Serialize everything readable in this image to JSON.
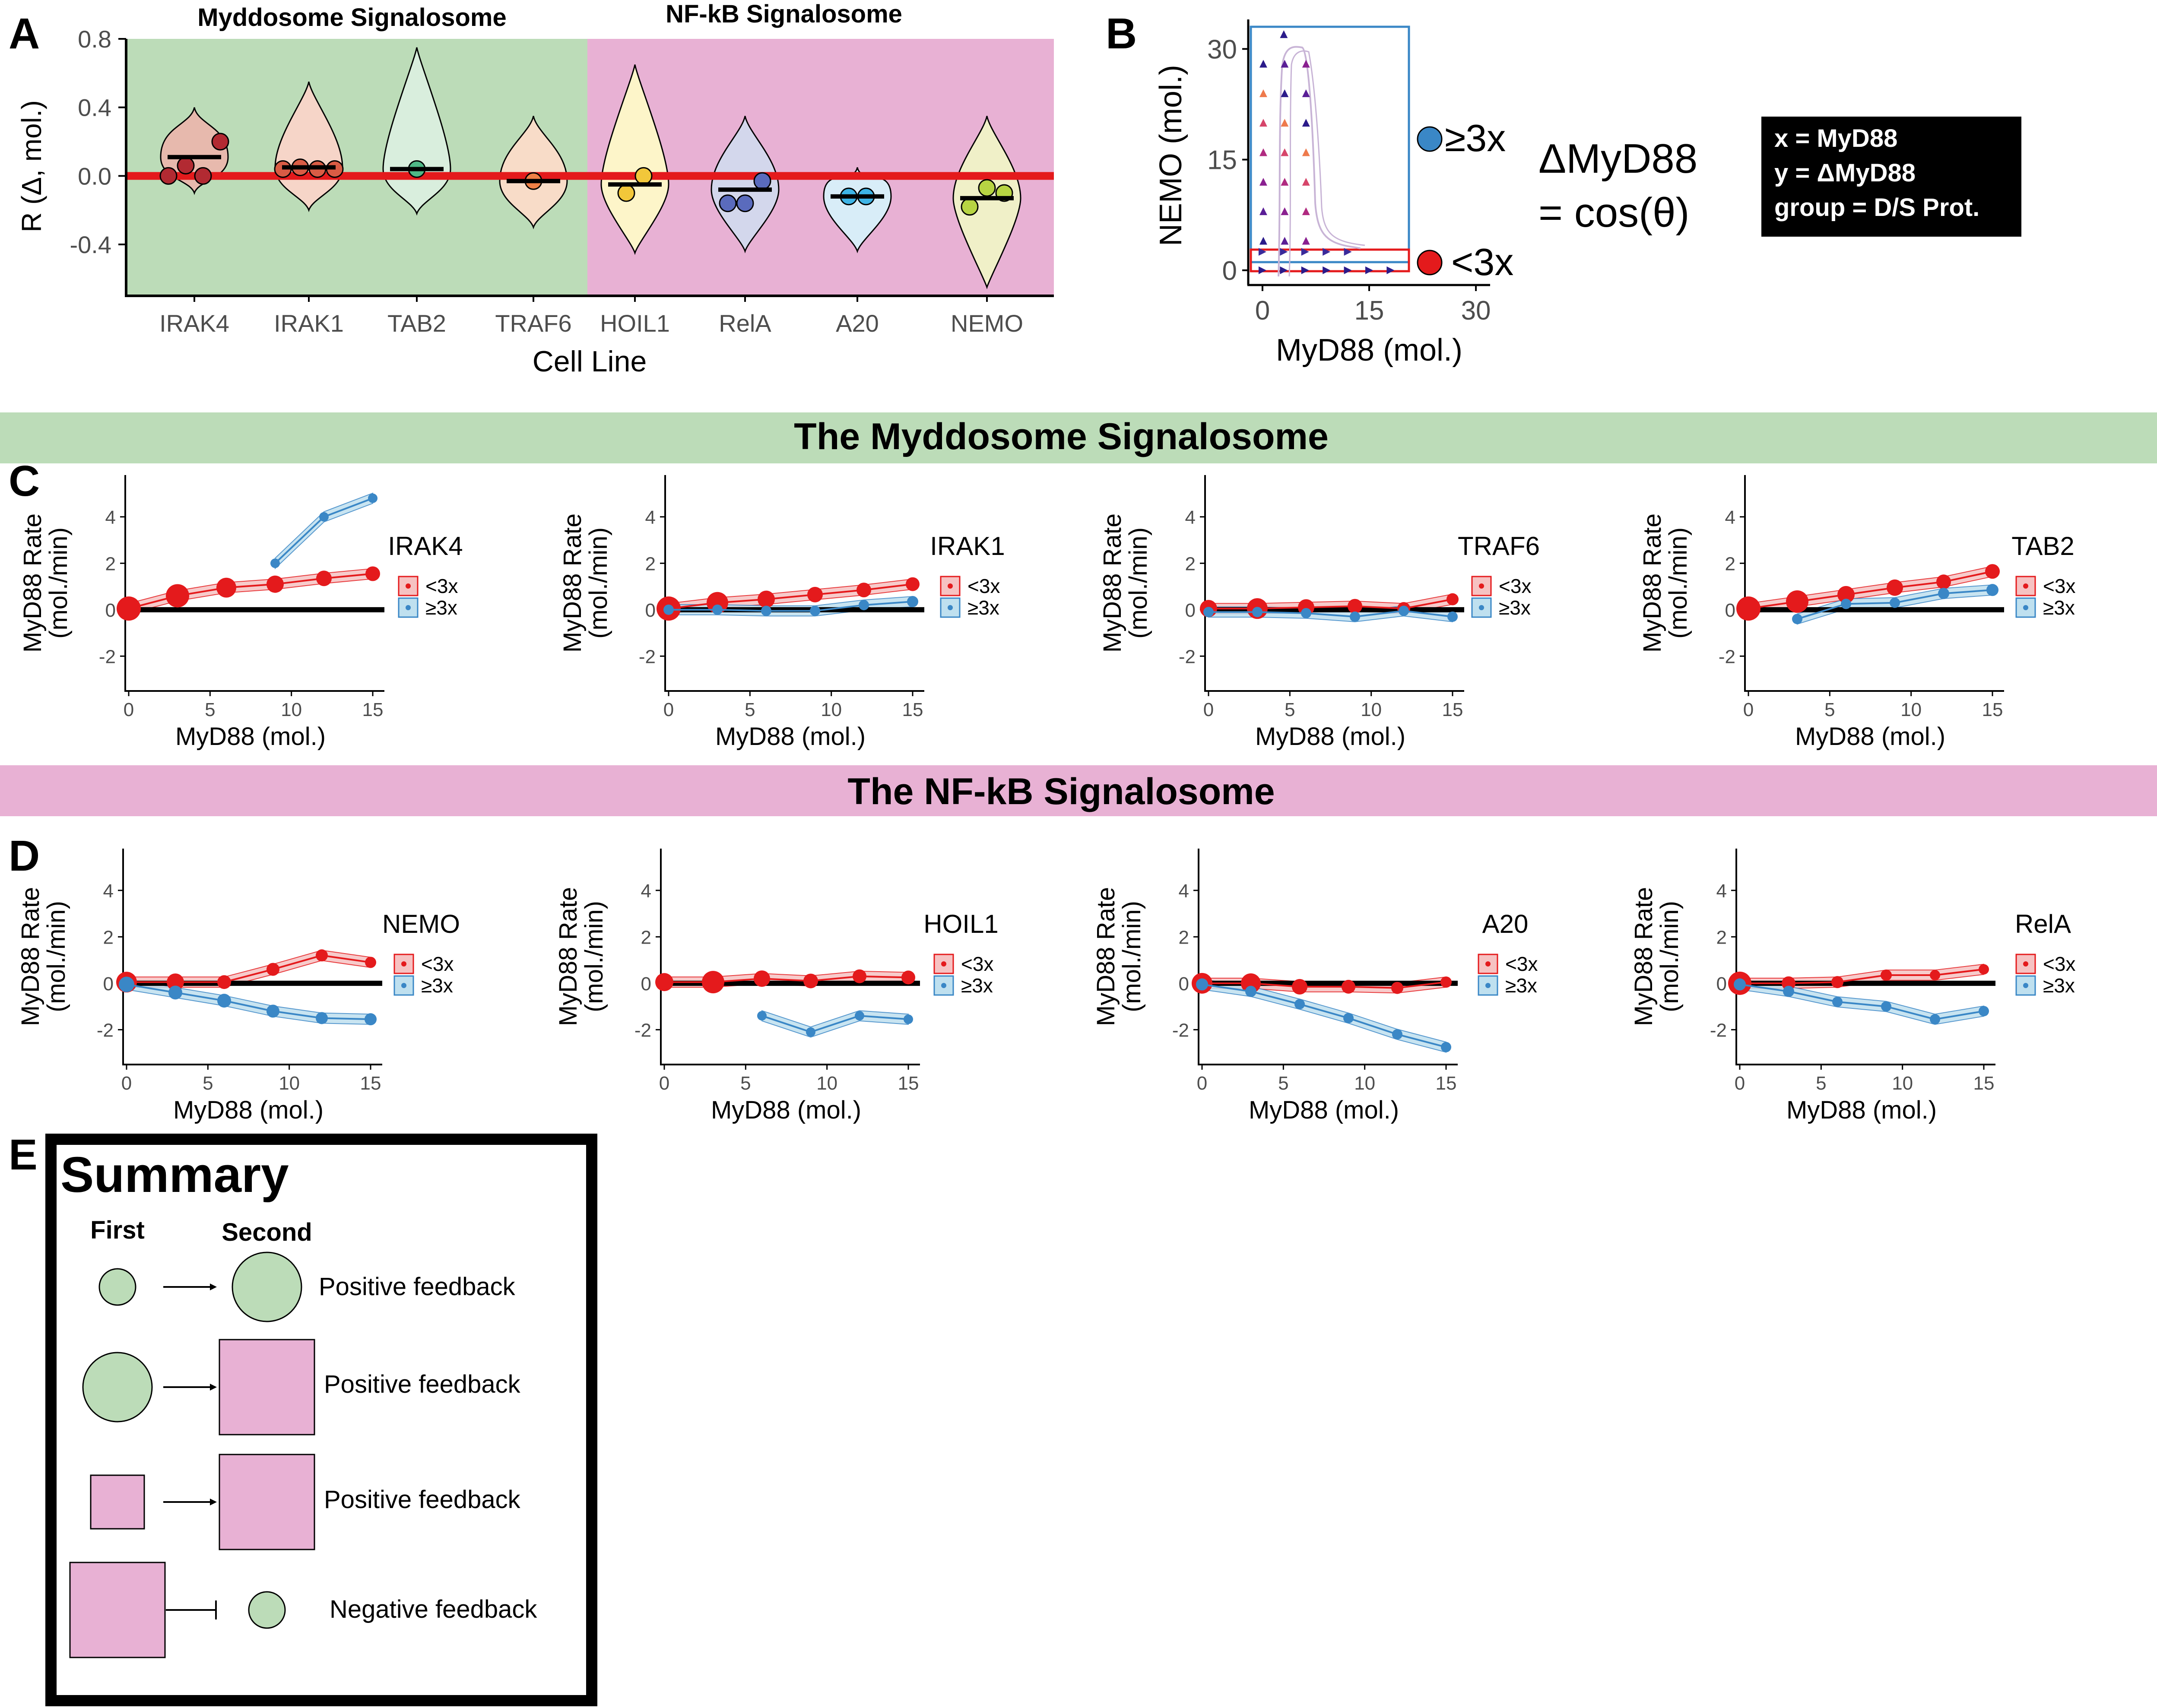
{
  "colors": {
    "red": "#e41a1c",
    "blue": "#3a87c6",
    "green_bg": "#bcdcb8",
    "pink_bg": "#e8b1d4",
    "black": "#000000",
    "axis_text": "#4d4d4d"
  },
  "panel_labels": {
    "A": "A",
    "B": "B",
    "C": "C",
    "D": "D",
    "E": "E"
  },
  "panel_a": {
    "group_titles": {
      "myddosome": "Myddosome Signalosome",
      "nfkb": "NF-kB Signalosome"
    },
    "ylabel": "R (Δ, mol.)",
    "xlabel": "Cell Line"
  },
  "panel_b": {
    "xlabel": "MyD88 (mol.)",
    "ylabel": "NEMO (mol.)",
    "legend_high": "≥3x",
    "legend_low": "<3x",
    "formula_line1": "ΔMyD88",
    "formula_line2": "= cos(θ)",
    "info_box": [
      "x = MyD88",
      "y = ΔMyD88",
      "group = D/S Prot."
    ]
  },
  "banners": {
    "myddosome": "The Myddosome Signalosome",
    "nfkb": "The NF-kB Signalosome"
  },
  "small_plot_labels": {
    "ylabel_line1": "MyD88 Rate",
    "ylabel_line2": "(mol./min)",
    "xlabel": "MyD88 (mol.)",
    "legend_low": "<3x",
    "legend_high": "≥3x"
  },
  "summary": {
    "title": "Summary",
    "col_first": "First",
    "col_second": "Second",
    "rows": [
      {
        "first": "circle",
        "second": "circle",
        "link": "arrow",
        "label": "Positive feedback"
      },
      {
        "first": "circle",
        "second": "square",
        "link": "arrow",
        "label": "Positive feedback"
      },
      {
        "first": "square",
        "second": "square",
        "link": "arrow",
        "label": "Positive feedback"
      },
      {
        "first": "square",
        "second": "circle",
        "link": "inhibit",
        "label": "Negative feedback"
      }
    ]
  },
  "chart_data": [
    {
      "id": "A",
      "type": "violin",
      "xlabel": "Cell Line",
      "ylabel": "R (Δ, mol.)",
      "ylim": [
        -0.7,
        0.8
      ],
      "yticks": [
        0.8,
        0.4,
        0.0,
        -0.4
      ],
      "ytick_labels": [
        "0.8",
        "0.4",
        "0.0",
        "-0.4"
      ],
      "reference_line": 0.0,
      "categories": [
        "IRAK4",
        "IRAK1",
        "TAB2",
        "TRAF6",
        "HOIL1",
        "RelA",
        "A20",
        "NEMO"
      ],
      "groups": [
        {
          "name": "Myddosome Signalosome",
          "categories": [
            "IRAK4",
            "IRAK1",
            "TAB2",
            "TRAF6"
          ]
        },
        {
          "name": "NF-kB Signalosome",
          "categories": [
            "HOIL1",
            "RelA",
            "A20",
            "NEMO"
          ]
        }
      ],
      "fill_colors": [
        "#e7b9ad",
        "#f6d5c8",
        "#d9eedd",
        "#f8dcc8",
        "#fdf5c9",
        "#d3d7ec",
        "#d8edf8",
        "#f0f0c8"
      ],
      "point_colors": [
        "#b22a32",
        "#d95c45",
        "#4fb886",
        "#f08046",
        "#f2c73a",
        "#5a6bbd",
        "#3eb4e6",
        "#b7d443"
      ],
      "violins": [
        {
          "category": "IRAK4",
          "min": -0.1,
          "max": 0.4,
          "median": 0.11,
          "points": [
            0.0,
            0.06,
            0.0,
            0.2
          ]
        },
        {
          "category": "IRAK1",
          "min": -0.2,
          "max": 0.55,
          "median": 0.05,
          "points": [
            0.04,
            0.05,
            0.04,
            0.04
          ]
        },
        {
          "category": "TAB2",
          "min": -0.22,
          "max": 0.75,
          "median": 0.04,
          "points": [
            0.04
          ]
        },
        {
          "category": "TRAF6",
          "min": -0.3,
          "max": 0.35,
          "median": -0.03,
          "points": [
            -0.03
          ]
        },
        {
          "category": "HOIL1",
          "min": -0.45,
          "max": 0.65,
          "median": -0.05,
          "points": [
            -0.1,
            0.0
          ]
        },
        {
          "category": "RelA",
          "min": -0.44,
          "max": 0.35,
          "median": -0.08,
          "points": [
            -0.16,
            -0.16,
            -0.03
          ]
        },
        {
          "category": "A20",
          "min": -0.44,
          "max": 0.05,
          "median": -0.12,
          "points": [
            -0.12,
            -0.12
          ]
        },
        {
          "category": "NEMO",
          "min": -0.65,
          "max": 0.35,
          "median": -0.13,
          "points": [
            -0.18,
            -0.07,
            -0.1
          ]
        }
      ]
    },
    {
      "id": "B",
      "type": "vector-field",
      "xlabel": "MyD88 (mol.)",
      "ylabel": "NEMO (mol.)",
      "xlim": [
        -2,
        32
      ],
      "ylim": [
        -2,
        34
      ],
      "xticks": [
        0,
        15,
        30
      ],
      "yticks": [
        0,
        15,
        30
      ],
      "regions": [
        {
          "name": "≥3x",
          "color": "#3a87c6"
        },
        {
          "name": "<3x",
          "color": "#e41a1c"
        }
      ],
      "arrow_columns_x": [
        0,
        3,
        6
      ],
      "arrow_rows_y": [
        4,
        8,
        12,
        16,
        20,
        24,
        28
      ],
      "bottom_row_y": 0,
      "bottom_row_x": [
        0,
        3,
        6,
        9,
        12,
        15,
        18
      ]
    },
    {
      "id": "C-IRAK4",
      "type": "line",
      "title": "IRAK4",
      "xlabel": "MyD88 (mol.)",
      "ylabel": "MyD88 Rate (mol./min)",
      "xlim": [
        -1,
        16
      ],
      "ylim": [
        -3.5,
        5.8
      ],
      "xticks": [
        0,
        5,
        10,
        15
      ],
      "yticks": [
        -2,
        0,
        2,
        4
      ],
      "series": [
        {
          "name": "<3x",
          "x": [
            0,
            3,
            6,
            9,
            12,
            15
          ],
          "y": [
            0.05,
            0.6,
            0.95,
            1.1,
            1.35,
            1.55
          ],
          "sizes": [
            1.0,
            0.95,
            0.75,
            0.6,
            0.5,
            0.45
          ]
        },
        {
          "name": "≥3x",
          "x": [
            9,
            12,
            15
          ],
          "y": [
            2.0,
            4.0,
            4.8
          ],
          "sizes": [
            0.15,
            0.15,
            0.15
          ]
        }
      ]
    },
    {
      "id": "C-IRAK1",
      "type": "line",
      "title": "IRAK1",
      "xlabel": "MyD88 (mol.)",
      "ylabel": "MyD88 Rate (mol./min)",
      "xlim": [
        -1,
        16
      ],
      "ylim": [
        -3.5,
        5.8
      ],
      "xticks": [
        0,
        5,
        10,
        15
      ],
      "yticks": [
        -2,
        0,
        2,
        4
      ],
      "series": [
        {
          "name": "<3x",
          "x": [
            0,
            3,
            6,
            9,
            12,
            15
          ],
          "y": [
            0.05,
            0.3,
            0.45,
            0.65,
            0.85,
            1.1
          ],
          "sizes": [
            1.0,
            0.85,
            0.6,
            0.5,
            0.45,
            0.4
          ]
        },
        {
          "name": "≥3x",
          "x": [
            0,
            3,
            6,
            9,
            12,
            15
          ],
          "y": [
            0.0,
            0.0,
            -0.05,
            -0.05,
            0.2,
            0.35
          ],
          "sizes": [
            0.2,
            0.2,
            0.2,
            0.2,
            0.2,
            0.25
          ]
        }
      ]
    },
    {
      "id": "C-TRAF6",
      "type": "line",
      "title": "TRAF6",
      "xlabel": "MyD88 (mol.)",
      "ylabel": "MyD88 Rate (mol./min)",
      "xlim": [
        -1,
        16
      ],
      "ylim": [
        -3.5,
        5.8
      ],
      "xticks": [
        0,
        5,
        10,
        15
      ],
      "yticks": [
        -2,
        0,
        2,
        4
      ],
      "series": [
        {
          "name": "<3x",
          "x": [
            0,
            3,
            6,
            9,
            12,
            15
          ],
          "y": [
            0.05,
            0.05,
            0.1,
            0.15,
            0.05,
            0.45
          ],
          "sizes": [
            0.6,
            0.8,
            0.55,
            0.45,
            0.35,
            0.3
          ]
        },
        {
          "name": "≥3x",
          "x": [
            0,
            3,
            6,
            9,
            12,
            15
          ],
          "y": [
            -0.1,
            -0.1,
            -0.15,
            -0.3,
            -0.05,
            -0.3
          ],
          "sizes": [
            0.2,
            0.2,
            0.2,
            0.2,
            0.2,
            0.2
          ]
        }
      ]
    },
    {
      "id": "C-TAB2",
      "type": "line",
      "title": "TAB2",
      "xlabel": "MyD88 (mol.)",
      "ylabel": "MyD88 Rate (mol./min)",
      "xlim": [
        -1,
        16
      ],
      "ylim": [
        -3.5,
        5.8
      ],
      "xticks": [
        0,
        5,
        10,
        15
      ],
      "yticks": [
        -2,
        0,
        2,
        4
      ],
      "series": [
        {
          "name": "<3x",
          "x": [
            0,
            3,
            6,
            9,
            12,
            15
          ],
          "y": [
            0.05,
            0.35,
            0.65,
            0.95,
            1.2,
            1.65
          ],
          "sizes": [
            1.0,
            0.9,
            0.6,
            0.55,
            0.45,
            0.45
          ]
        },
        {
          "name": "≥3x",
          "x": [
            3,
            6,
            9,
            12,
            15
          ],
          "y": [
            -0.4,
            0.25,
            0.3,
            0.7,
            0.85
          ],
          "sizes": [
            0.2,
            0.2,
            0.2,
            0.25,
            0.3
          ]
        }
      ]
    },
    {
      "id": "D-NEMO",
      "type": "line",
      "title": "NEMO",
      "xlabel": "MyD88 (mol.)",
      "ylabel": "MyD88 Rate (mol./min)",
      "xlim": [
        -1,
        16
      ],
      "ylim": [
        -3.5,
        5.8
      ],
      "xticks": [
        0,
        5,
        10,
        15
      ],
      "yticks": [
        -2,
        0,
        2,
        4
      ],
      "series": [
        {
          "name": "<3x",
          "x": [
            0,
            3,
            6,
            9,
            12,
            15
          ],
          "y": [
            0.05,
            0.05,
            0.05,
            0.6,
            1.2,
            0.9
          ],
          "sizes": [
            0.8,
            0.6,
            0.4,
            0.35,
            0.3,
            0.25
          ]
        },
        {
          "name": "≥3x",
          "x": [
            0,
            3,
            6,
            9,
            12,
            15
          ],
          "y": [
            -0.05,
            -0.4,
            -0.75,
            -1.2,
            -1.5,
            -1.55
          ],
          "sizes": [
            0.5,
            0.4,
            0.4,
            0.35,
            0.3,
            0.3
          ]
        }
      ]
    },
    {
      "id": "D-HOIL1",
      "type": "line",
      "title": "HOIL1",
      "xlabel": "MyD88 (mol.)",
      "ylabel": "MyD88 Rate (mol./min)",
      "xlim": [
        -1,
        16
      ],
      "ylim": [
        -3.5,
        5.8
      ],
      "xticks": [
        0,
        5,
        10,
        15
      ],
      "yticks": [
        -2,
        0,
        2,
        4
      ],
      "series": [
        {
          "name": "<3x",
          "x": [
            0,
            3,
            6,
            9,
            12,
            15
          ],
          "y": [
            0.05,
            0.05,
            0.2,
            0.1,
            0.3,
            0.25
          ],
          "sizes": [
            0.65,
            0.9,
            0.55,
            0.45,
            0.4,
            0.4
          ]
        },
        {
          "name": "≥3x",
          "x": [
            6,
            9,
            12,
            15
          ],
          "y": [
            -1.4,
            -2.1,
            -1.4,
            -1.55
          ],
          "sizes": [
            0.15,
            0.15,
            0.15,
            0.15
          ]
        }
      ]
    },
    {
      "id": "D-A20",
      "type": "line",
      "title": "A20",
      "xlabel": "MyD88 (mol.)",
      "ylabel": "MyD88 Rate (mol./min)",
      "xlim": [
        -1,
        16
      ],
      "ylim": [
        -3.5,
        5.8
      ],
      "xticks": [
        0,
        5,
        10,
        15
      ],
      "yticks": [
        -2,
        0,
        2,
        4
      ],
      "series": [
        {
          "name": "<3x",
          "x": [
            0,
            3,
            6,
            9,
            12,
            15
          ],
          "y": [
            0.0,
            0.0,
            -0.15,
            -0.15,
            -0.2,
            0.05
          ],
          "sizes": [
            0.8,
            0.75,
            0.5,
            0.4,
            0.3,
            0.25
          ]
        },
        {
          "name": "≥3x",
          "x": [
            0,
            3,
            6,
            9,
            12,
            15
          ],
          "y": [
            -0.05,
            -0.35,
            -0.9,
            -1.5,
            -2.2,
            -2.75
          ],
          "sizes": [
            0.3,
            0.25,
            0.2,
            0.2,
            0.2,
            0.2
          ]
        }
      ]
    },
    {
      "id": "D-RelA",
      "type": "line",
      "title": "RelA",
      "xlabel": "MyD88 (mol.)",
      "ylabel": "MyD88 Rate (mol./min)",
      "xlim": [
        -1,
        16
      ],
      "ylim": [
        -3.5,
        5.8
      ],
      "xticks": [
        0,
        5,
        10,
        15
      ],
      "yticks": [
        -2,
        0,
        2,
        4
      ],
      "series": [
        {
          "name": "<3x",
          "x": [
            0,
            3,
            6,
            9,
            12,
            15
          ],
          "y": [
            0.0,
            0.0,
            0.05,
            0.35,
            0.35,
            0.6
          ],
          "sizes": [
            0.95,
            0.4,
            0.3,
            0.25,
            0.2,
            0.2
          ]
        },
        {
          "name": "≥3x",
          "x": [
            0,
            3,
            6,
            9,
            12,
            15
          ],
          "y": [
            -0.05,
            -0.35,
            -0.8,
            -1.0,
            -1.55,
            -1.2
          ],
          "sizes": [
            0.3,
            0.25,
            0.2,
            0.2,
            0.2,
            0.2
          ]
        }
      ]
    }
  ]
}
